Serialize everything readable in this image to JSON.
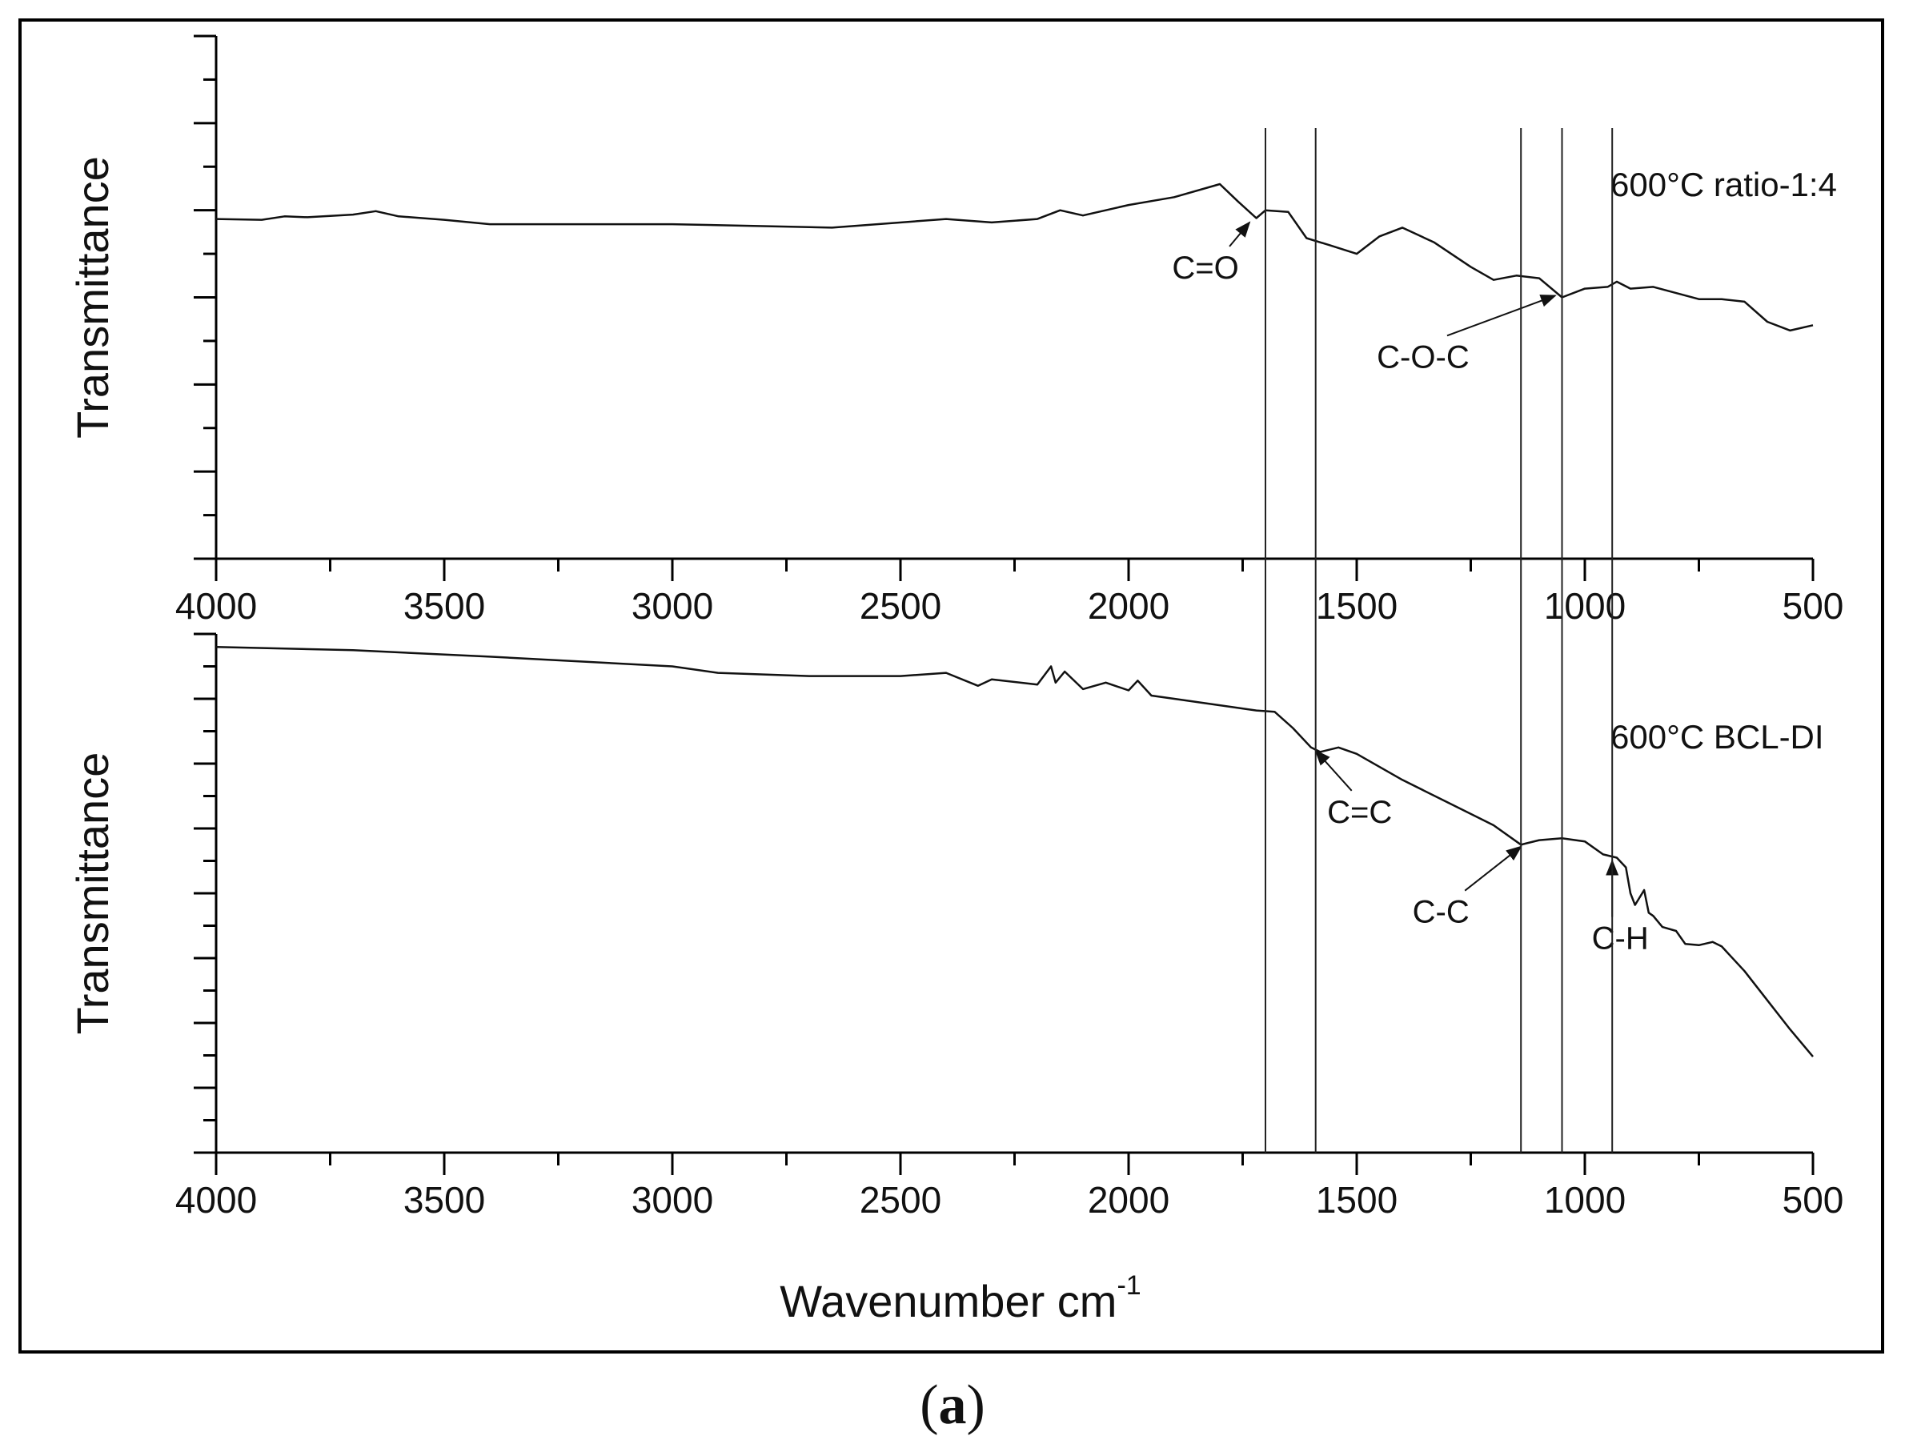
{
  "figure_label": "a",
  "x_axis_title": "Wavenumber cm",
  "x_axis_title_sup": "-1",
  "chart_data": [
    {
      "type": "line",
      "panel": "top",
      "ylabel": "Transmittance",
      "annotation_label": "600°C ratio-1:4",
      "xlim": [
        4000,
        500
      ],
      "ylim": [
        0,
        6
      ],
      "x_ticks": [
        4000,
        3500,
        3000,
        2500,
        2000,
        1500,
        1000,
        500
      ],
      "x_tick_labels": [
        "4000",
        "3500",
        "3000",
        "2500",
        "2000",
        "1500",
        "1000",
        "500"
      ],
      "reference_lines": [
        1700,
        1590,
        1140,
        1050,
        940
      ],
      "series": [
        {
          "x": [
            4000,
            3900,
            3850,
            3800,
            3700,
            3650,
            3600,
            3500,
            3400,
            3000,
            2650,
            2400,
            2300,
            2200,
            2150,
            2100,
            2000,
            1900,
            1800,
            1760,
            1720,
            1700,
            1650,
            1610,
            1560,
            1500,
            1450,
            1400,
            1330,
            1250,
            1200,
            1150,
            1100,
            1050,
            1000,
            950,
            930,
            900,
            850,
            800,
            750,
            700,
            650,
            600,
            550,
            500
          ],
          "y": [
            3.9,
            3.89,
            3.93,
            3.92,
            3.95,
            3.99,
            3.93,
            3.89,
            3.84,
            3.84,
            3.8,
            3.9,
            3.86,
            3.9,
            4.0,
            3.94,
            4.06,
            4.15,
            4.3,
            4.1,
            3.91,
            4.0,
            3.98,
            3.68,
            3.6,
            3.5,
            3.7,
            3.8,
            3.63,
            3.35,
            3.2,
            3.25,
            3.22,
            3.0,
            3.1,
            3.12,
            3.18,
            3.1,
            3.12,
            3.05,
            2.98,
            2.98,
            2.95,
            2.72,
            2.62,
            2.68
          ]
        }
      ],
      "annotations": [
        {
          "text": "C=O",
          "x": 1735,
          "y": 3.86
        },
        {
          "text": "C-O-C",
          "x": 1065,
          "y": 3.02
        }
      ]
    },
    {
      "type": "line",
      "panel": "bottom",
      "ylabel": "Transmittance",
      "annotation_label": "600°C BCL-DI",
      "xlim": [
        4000,
        500
      ],
      "ylim": [
        0,
        8
      ],
      "x_ticks": [
        4000,
        3500,
        3000,
        2500,
        2000,
        1500,
        1000,
        500
      ],
      "x_tick_labels": [
        "4000",
        "3500",
        "3000",
        "2500",
        "2000",
        "1500",
        "1000",
        "500"
      ],
      "reference_lines": [
        1700,
        1590,
        1140,
        1050,
        940
      ],
      "series": [
        {
          "x": [
            4000,
            3700,
            3400,
            3000,
            2900,
            2700,
            2500,
            2400,
            2330,
            2300,
            2200,
            2170,
            2160,
            2140,
            2100,
            2050,
            2000,
            1980,
            1950,
            1900,
            1800,
            1720,
            1680,
            1640,
            1600,
            1580,
            1540,
            1500,
            1400,
            1300,
            1200,
            1140,
            1100,
            1050,
            1000,
            960,
            930,
            910,
            900,
            890,
            870,
            860,
            850,
            830,
            800,
            780,
            750,
            720,
            700,
            650,
            600,
            550,
            500
          ],
          "y": [
            7.8,
            7.75,
            7.65,
            7.5,
            7.4,
            7.35,
            7.35,
            7.4,
            7.2,
            7.3,
            7.22,
            7.5,
            7.25,
            7.42,
            7.15,
            7.25,
            7.13,
            7.28,
            7.05,
            7.0,
            6.9,
            6.82,
            6.8,
            6.55,
            6.25,
            6.18,
            6.25,
            6.15,
            5.75,
            5.4,
            5.05,
            4.75,
            4.82,
            4.85,
            4.8,
            4.6,
            4.55,
            4.4,
            4.0,
            3.82,
            4.05,
            3.7,
            3.65,
            3.48,
            3.42,
            3.22,
            3.2,
            3.25,
            3.18,
            2.8,
            2.35,
            1.9,
            1.48
          ]
        }
      ],
      "annotations": [
        {
          "text": "C=C",
          "x": 1590,
          "y": 6.2
        },
        {
          "text": "C-C",
          "x": 1140,
          "y": 4.72
        },
        {
          "text": "C-H",
          "x": 940,
          "y": 4.5
        }
      ]
    }
  ]
}
